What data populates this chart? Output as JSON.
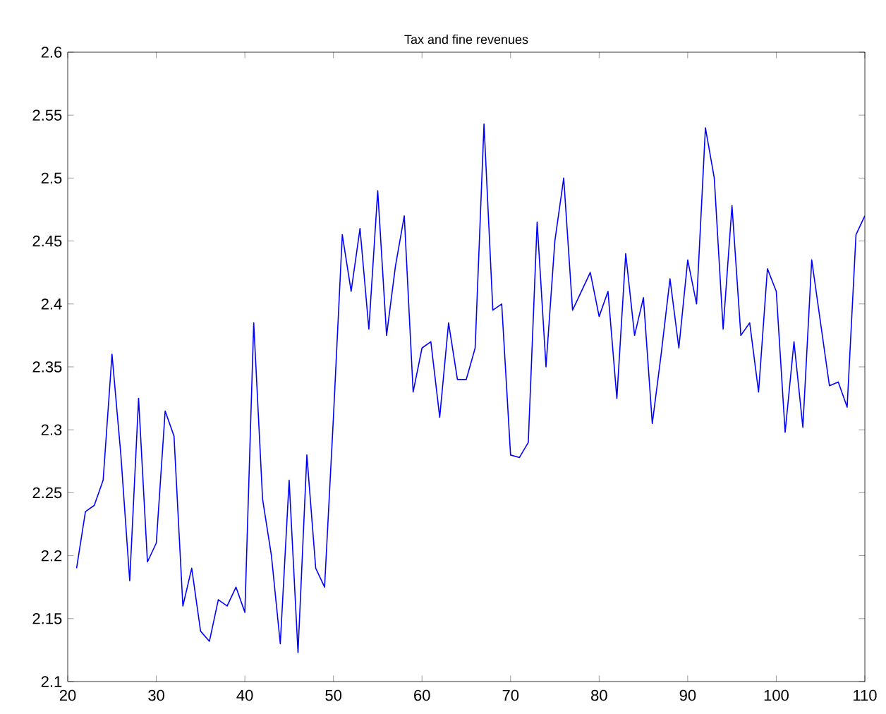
{
  "chart_data": {
    "type": "line",
    "title": "Tax and fine revenues",
    "x": [
      21,
      22,
      23,
      24,
      25,
      26,
      27,
      28,
      29,
      30,
      31,
      32,
      33,
      34,
      35,
      36,
      37,
      38,
      39,
      40,
      41,
      42,
      43,
      44,
      45,
      46,
      47,
      48,
      49,
      50,
      51,
      52,
      53,
      54,
      55,
      56,
      57,
      58,
      59,
      60,
      61,
      62,
      63,
      64,
      65,
      66,
      67,
      68,
      69,
      70,
      71,
      72,
      73,
      74,
      75,
      76,
      77,
      78,
      79,
      80,
      81,
      82,
      83,
      84,
      85,
      86,
      87,
      88,
      89,
      90,
      91,
      92,
      93,
      94,
      95,
      96,
      97,
      98,
      99,
      100,
      101,
      102,
      103,
      104,
      105,
      106,
      107,
      108,
      109,
      110
    ],
    "series": [
      {
        "color": "#0000ff",
        "values": [
          2.19,
          2.235,
          2.24,
          2.26,
          2.36,
          2.28,
          2.18,
          2.325,
          2.195,
          2.21,
          2.315,
          2.295,
          2.16,
          2.19,
          2.14,
          2.132,
          2.165,
          2.16,
          2.175,
          2.155,
          2.385,
          2.245,
          2.2,
          2.13,
          2.26,
          2.123,
          2.28,
          2.19,
          2.175,
          2.31,
          2.455,
          2.41,
          2.46,
          2.38,
          2.49,
          2.375,
          2.43,
          2.47,
          2.33,
          2.365,
          2.37,
          2.31,
          2.385,
          2.34,
          2.34,
          2.365,
          2.543,
          2.395,
          2.4,
          2.28,
          2.278,
          2.29,
          2.465,
          2.35,
          2.45,
          2.5,
          2.395,
          2.41,
          2.425,
          2.39,
          2.41,
          2.325,
          2.44,
          2.375,
          2.405,
          2.305,
          2.36,
          2.42,
          2.365,
          2.435,
          2.4,
          2.54,
          2.5,
          2.38,
          2.478,
          2.375,
          2.385,
          2.33,
          2.428,
          2.41,
          2.298,
          2.37,
          2.302,
          2.435,
          2.385,
          2.335,
          2.338,
          2.318,
          2.455,
          2.47
        ]
      }
    ],
    "xlim": [
      20,
      110
    ],
    "ylim": [
      2.1,
      2.6
    ],
    "xticks": [
      20,
      30,
      40,
      50,
      60,
      70,
      80,
      90,
      100,
      110
    ],
    "yticks": [
      2.1,
      2.15,
      2.2,
      2.25,
      2.3,
      2.35,
      2.4,
      2.45,
      2.5,
      2.55,
      2.6
    ],
    "grid": false,
    "marker": "none",
    "line_style": "solid"
  }
}
